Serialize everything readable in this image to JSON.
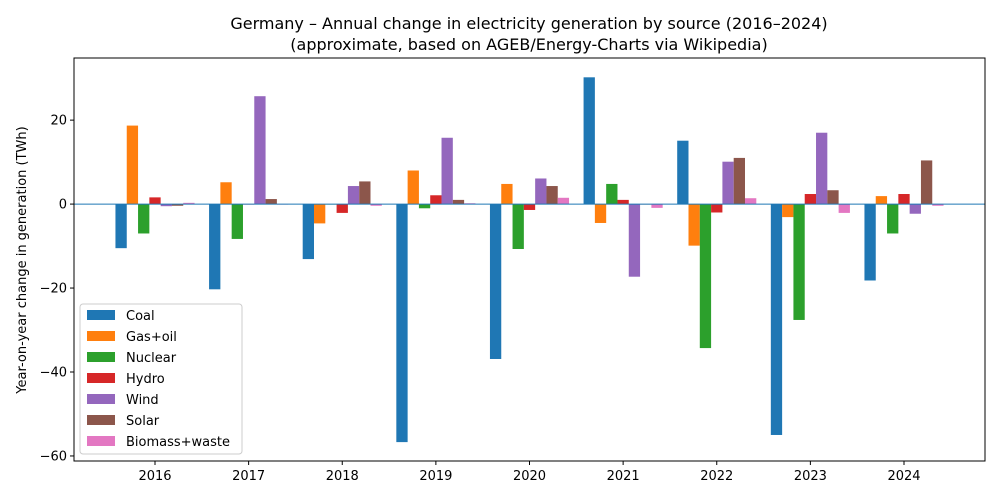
{
  "chart_data": {
    "type": "bar",
    "title": "Germany – Annual change in electricity generation by source (2016–2024)",
    "subtitle": "(approximate, based on AGEB/Energy-Charts via Wikipedia)",
    "xlabel": "",
    "ylabel": "Year-on-year change in generation (TWh)",
    "ylim": [
      -61.2,
      34.8
    ],
    "yticks": [
      -60,
      -40,
      -20,
      0,
      20
    ],
    "grid": false,
    "legend_position": "lower-left",
    "categories": [
      "2016",
      "2017",
      "2018",
      "2019",
      "2020",
      "2021",
      "2022",
      "2023",
      "2024"
    ],
    "series": [
      {
        "name": "Coal",
        "color": "#1f77b4",
        "values": [
          -10.5,
          -20.3,
          -13.1,
          -56.7,
          -36.9,
          30.2,
          15.1,
          -55.0,
          -18.2
        ]
      },
      {
        "name": "Gas+oil",
        "color": "#ff7f0e",
        "values": [
          18.7,
          5.2,
          -4.6,
          8.0,
          4.8,
          -4.5,
          -9.9,
          -3.1,
          1.9
        ]
      },
      {
        "name": "Nuclear",
        "color": "#2ca02c",
        "values": [
          -7.0,
          -8.3,
          0.0,
          -1.0,
          -10.7,
          4.8,
          -34.3,
          -27.6,
          -7.0
        ]
      },
      {
        "name": "Hydro",
        "color": "#d62728",
        "values": [
          1.6,
          0.0,
          -2.1,
          2.1,
          -1.4,
          1.0,
          -2.0,
          2.4,
          2.4
        ]
      },
      {
        "name": "Wind",
        "color": "#9467bd",
        "values": [
          -0.5,
          25.7,
          4.3,
          15.8,
          6.1,
          -17.3,
          10.1,
          17.0,
          -2.3
        ]
      },
      {
        "name": "Solar",
        "color": "#8c564b",
        "values": [
          -0.4,
          1.2,
          5.4,
          1.0,
          4.3,
          0.0,
          11.0,
          3.3,
          10.4
        ]
      },
      {
        "name": "Biomass+waste",
        "color": "#e377c2",
        "values": [
          0.3,
          0.0,
          -0.4,
          0.2,
          1.5,
          -0.9,
          1.4,
          -2.1,
          -0.4
        ]
      }
    ]
  }
}
